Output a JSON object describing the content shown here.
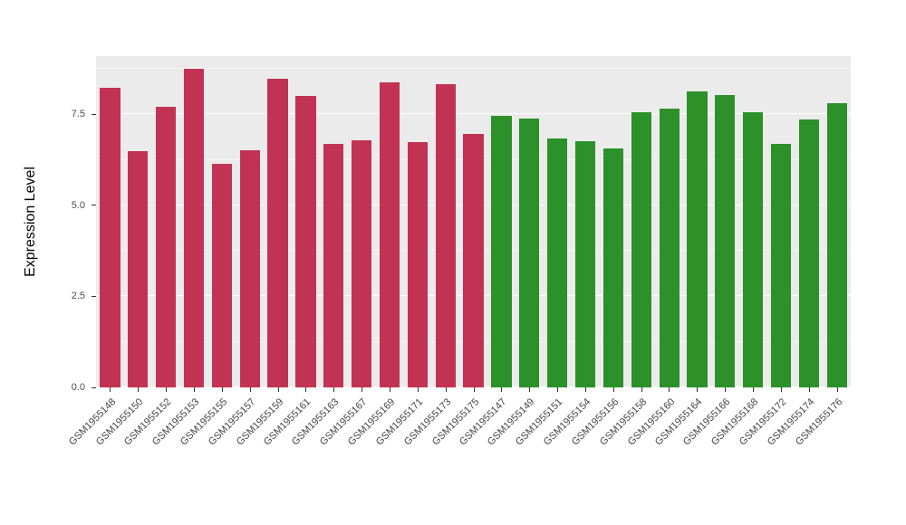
{
  "chart_data": {
    "type": "bar",
    "title": "",
    "xlabel": "",
    "ylabel": "Expression Level",
    "ylim": [
      0,
      9.1
    ],
    "yticks": [
      0.0,
      2.5,
      5.0,
      7.5
    ],
    "ytick_labels": [
      "0.0",
      "2.5",
      "5.0",
      "7.5"
    ],
    "grid": true,
    "legend_position": "none",
    "panel_background": "#EBEBEB",
    "categories": [
      "GSM1955148",
      "GSM1955150",
      "GSM1955152",
      "GSM1955153",
      "GSM1955155",
      "GSM1955157",
      "GSM1955159",
      "GSM1955161",
      "GSM1955163",
      "GSM1955167",
      "GSM1955169",
      "GSM1955171",
      "GSM1955173",
      "GSM1955175",
      "GSM1955147",
      "GSM1955149",
      "GSM1955151",
      "GSM1955154",
      "GSM1955156",
      "GSM1955158",
      "GSM1955160",
      "GSM1955164",
      "GSM1955166",
      "GSM1955168",
      "GSM1955172",
      "GSM1955174",
      "GSM1955176"
    ],
    "values": [
      8.22,
      6.49,
      7.7,
      8.74,
      6.14,
      6.51,
      8.49,
      8.0,
      6.68,
      6.78,
      8.37,
      6.73,
      8.32,
      6.96,
      7.45,
      7.38,
      6.83,
      6.76,
      6.56,
      7.55,
      7.67,
      8.14,
      8.04,
      7.55,
      6.68,
      7.35,
      7.8
    ],
    "groups": [
      "group1",
      "group1",
      "group1",
      "group1",
      "group1",
      "group1",
      "group1",
      "group1",
      "group1",
      "group1",
      "group1",
      "group1",
      "group1",
      "group1",
      "group2",
      "group2",
      "group2",
      "group2",
      "group2",
      "group2",
      "group2",
      "group2",
      "group2",
      "group2",
      "group2",
      "group2",
      "group2"
    ],
    "group_colors": {
      "group1": "#C23353",
      "group2": "#2B9128"
    }
  }
}
